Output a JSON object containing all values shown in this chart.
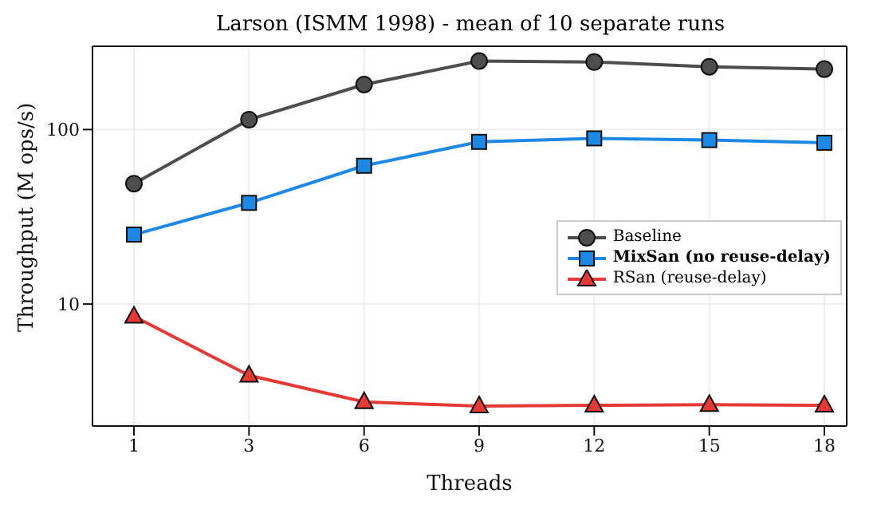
{
  "chart_data": {
    "type": "line",
    "title": "Larson (ISMM 1998) - mean of 10 separate runs",
    "xlabel": "Threads",
    "ylabel": "Throughput (M ops/s)",
    "categories": [
      "1",
      "3",
      "6",
      "9",
      "12",
      "15",
      "18"
    ],
    "series": [
      {
        "name": "Baseline",
        "color": "#4d4d4d",
        "marker": "circle",
        "values": [
          49,
          114,
          181,
          247,
          244,
          229,
          222
        ]
      },
      {
        "name": "MixSan (no reuse-delay)",
        "color": "#1e88e5",
        "marker": "square",
        "values": [
          25,
          38,
          62,
          85,
          89,
          87,
          84
        ]
      },
      {
        "name": "RSan (reuse-delay)",
        "color": "#e53935",
        "marker": "triangle",
        "values": [
          8.5,
          3.9,
          2.75,
          2.6,
          2.63,
          2.65,
          2.63
        ]
      }
    ],
    "log": "y",
    "ylim": [
      2,
      300
    ],
    "yticks": [
      10,
      100
    ],
    "grid": true,
    "legend": "right",
    "line_style": "solid"
  }
}
